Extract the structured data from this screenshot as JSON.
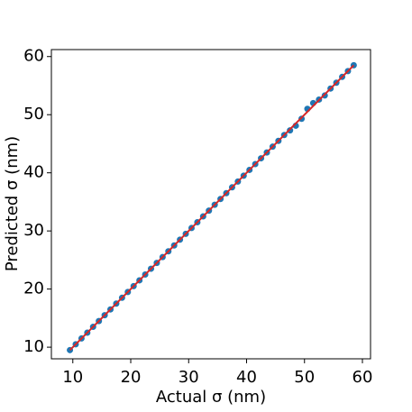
{
  "chart_data": {
    "type": "scatter",
    "xlabel": "Actual σ (nm)",
    "ylabel": "Predicted σ (nm)",
    "xlim": [
      6.3,
      61.4
    ],
    "ylim": [
      8.0,
      61.2
    ],
    "xticks": [
      10,
      20,
      30,
      40,
      50,
      60
    ],
    "yticks": [
      10,
      20,
      30,
      40,
      50,
      60
    ],
    "grid": false,
    "series": [
      {
        "type": "scatter",
        "color": "#1f77b4",
        "x": [
          9.5,
          10.5,
          11.5,
          12.5,
          13.5,
          14.5,
          15.5,
          16.5,
          17.5,
          18.5,
          19.5,
          20.5,
          21.5,
          22.5,
          23.5,
          24.5,
          25.5,
          26.5,
          27.5,
          28.5,
          29.5,
          30.5,
          31.5,
          32.5,
          33.5,
          34.5,
          35.5,
          36.5,
          37.5,
          38.5,
          39.5,
          40.5,
          41.5,
          42.5,
          43.5,
          44.5,
          45.5,
          46.5,
          47.5,
          48.5,
          49.5,
          50.5,
          51.5,
          52.5,
          53.5,
          54.5,
          55.5,
          56.5,
          57.5,
          58.5
        ],
        "y": [
          9.5,
          10.5,
          11.5,
          12.5,
          13.5,
          14.5,
          15.5,
          16.5,
          17.5,
          18.5,
          19.5,
          20.5,
          21.5,
          22.5,
          23.5,
          24.5,
          25.5,
          26.5,
          27.5,
          28.5,
          29.5,
          30.5,
          31.5,
          32.5,
          33.5,
          34.5,
          35.5,
          36.5,
          37.5,
          38.5,
          39.5,
          40.5,
          41.5,
          42.5,
          43.5,
          44.5,
          45.5,
          46.5,
          47.3,
          48.1,
          49.3,
          51.0,
          52.0,
          52.6,
          53.3,
          54.5,
          55.5,
          56.5,
          57.5,
          58.5
        ]
      },
      {
        "type": "line",
        "color": "#d62728",
        "x": [
          9.5,
          58.5
        ],
        "y": [
          9.5,
          58.5
        ]
      }
    ]
  }
}
